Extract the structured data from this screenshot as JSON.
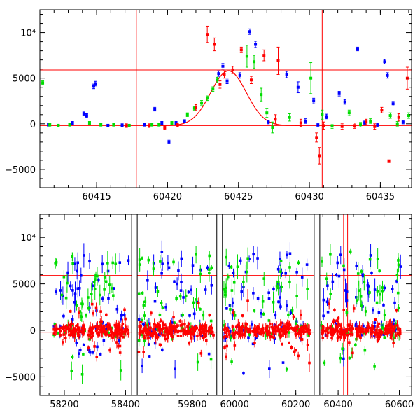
{
  "chart_data": [
    {
      "type": "scatter",
      "xlim": [
        60411,
        60437.2
      ],
      "ylim": [
        -7000,
        12500
      ],
      "x_ticks": [
        {
          "value": 60415,
          "label": "60415"
        },
        {
          "value": 60420,
          "label": "60420"
        },
        {
          "value": 60425,
          "label": "60425"
        },
        {
          "value": 60430,
          "label": "60430"
        },
        {
          "value": 60435,
          "label": "60435"
        }
      ],
      "y_ticks": [
        {
          "value": -5000,
          "label": "−5000"
        },
        {
          "value": 0,
          "label": "0"
        },
        {
          "value": 5000,
          "label": "5000"
        },
        {
          "value": 10000,
          "label": "10⁴"
        }
      ],
      "hlines": [
        5900,
        -200
      ],
      "vlines": [
        60417.8,
        60430.9
      ],
      "model_curve": {
        "peak_x": 60424.3,
        "peak_y": 5800,
        "baseline": -200,
        "width": 1.25,
        "color": "#ff0000"
      },
      "series": [
        {
          "color": "#0000ff",
          "points": [
            [
              60411.6,
              -100,
              150
            ],
            [
              60413.3,
              100,
              150
            ],
            [
              60414.1,
              1100,
              200
            ],
            [
              60414.3,
              900,
              200
            ],
            [
              60414.8,
              4100,
              250
            ],
            [
              60414.9,
              4400,
              250
            ],
            [
              60415.8,
              -200,
              150
            ],
            [
              60416.8,
              -150,
              150
            ],
            [
              60418.4,
              -100,
              150
            ],
            [
              60419.1,
              1600,
              200
            ],
            [
              60419.6,
              100,
              150
            ],
            [
              60420.1,
              -2000,
              200
            ],
            [
              60420.6,
              100,
              150
            ],
            [
              60421.2,
              300,
              150
            ],
            [
              60423.6,
              5500,
              300
            ],
            [
              60423.9,
              6300,
              300
            ],
            [
              60424.2,
              4700,
              300
            ],
            [
              60425.1,
              5300,
              300
            ],
            [
              60425.8,
              10100,
              300
            ],
            [
              60426.2,
              8700,
              350
            ],
            [
              60427.1,
              200,
              200
            ],
            [
              60428.4,
              5400,
              350
            ],
            [
              60429.2,
              4000,
              600
            ],
            [
              60429.7,
              300,
              250
            ],
            [
              60430.3,
              2500,
              300
            ],
            [
              60430.6,
              -100,
              200
            ],
            [
              60431.2,
              800,
              250
            ],
            [
              60432.1,
              3300,
              250
            ],
            [
              60432.5,
              2400,
              250
            ],
            [
              60433.4,
              8200,
              200
            ],
            [
              60433.9,
              100,
              200
            ],
            [
              60434.8,
              -100,
              200
            ],
            [
              60435.3,
              6800,
              250
            ],
            [
              60435.5,
              5300,
              300
            ],
            [
              60435.9,
              2200,
              250
            ],
            [
              60436.6,
              200,
              200
            ]
          ]
        },
        {
          "color": "#00dd00",
          "points": [
            [
              60411.2,
              4500,
              200
            ],
            [
              60411.7,
              -100,
              150
            ],
            [
              60412.3,
              -200,
              150
            ],
            [
              60413.1,
              -100,
              150
            ],
            [
              60414.5,
              100,
              150
            ],
            [
              60415.3,
              -100,
              150
            ],
            [
              60416.2,
              -100,
              150
            ],
            [
              60417.3,
              -200,
              150
            ],
            [
              60418.9,
              -100,
              150
            ],
            [
              60419.4,
              -100,
              150
            ],
            [
              60420.3,
              100,
              150
            ],
            [
              60421.4,
              1000,
              200
            ],
            [
              60421.9,
              1700,
              200
            ],
            [
              60422.4,
              2300,
              250
            ],
            [
              60422.8,
              2800,
              250
            ],
            [
              60423.2,
              3800,
              250
            ],
            [
              60423.5,
              4800,
              300
            ],
            [
              60425.6,
              7400,
              1200
            ],
            [
              60426.1,
              6800,
              700
            ],
            [
              60426.6,
              3200,
              700
            ],
            [
              60427.0,
              1200,
              500
            ],
            [
              60427.4,
              -400,
              600
            ],
            [
              60428.6,
              700,
              400
            ],
            [
              60430.1,
              5000,
              1700
            ],
            [
              60430.9,
              1000,
              500
            ],
            [
              60431.6,
              -200,
              300
            ],
            [
              60432.8,
              1200,
              300
            ],
            [
              60433.6,
              -100,
              250
            ],
            [
              60434.3,
              300,
              250
            ],
            [
              60435.7,
              900,
              300
            ],
            [
              60436.2,
              0,
              250
            ],
            [
              60437.0,
              900,
              300
            ]
          ]
        },
        {
          "color": "#ff0000",
          "points": [
            [
              60417.1,
              -200,
              200
            ],
            [
              60418.7,
              -200,
              200
            ],
            [
              60419.8,
              -400,
              200
            ],
            [
              60420.7,
              -100,
              200
            ],
            [
              60422.0,
              1800,
              300
            ],
            [
              60422.8,
              9800,
              900
            ],
            [
              60423.3,
              8700,
              700
            ],
            [
              60423.7,
              4300,
              400
            ],
            [
              60424.0,
              5400,
              400
            ],
            [
              60424.6,
              5900,
              400
            ],
            [
              60425.2,
              8100,
              300
            ],
            [
              60425.9,
              4800,
              400
            ],
            [
              60426.8,
              7500,
              600
            ],
            [
              60427.6,
              500,
              500
            ],
            [
              60427.8,
              6900,
              1500
            ],
            [
              60429.4,
              100,
              400
            ],
            [
              60430.5,
              -1500,
              500
            ],
            [
              60430.7,
              -3500,
              900
            ],
            [
              60431.0,
              -200,
              400
            ],
            [
              60432.3,
              -300,
              300
            ],
            [
              60433.2,
              -200,
              300
            ],
            [
              60434.0,
              200,
              300
            ],
            [
              60434.6,
              -300,
              300
            ],
            [
              60435.1,
              1500,
              300
            ],
            [
              60435.6,
              -4100,
              150
            ],
            [
              60436.3,
              700,
              400
            ],
            [
              60436.9,
              5000,
              1200
            ]
          ]
        }
      ]
    },
    {
      "type": "scatter",
      "xlim": [
        58120,
        60640
      ],
      "ylim": [
        -7000,
        12500
      ],
      "breaks": [
        [
          58420,
          59620
        ],
        [
          59880,
          59960
        ],
        [
          60260,
          60340
        ]
      ],
      "x_ticks": [
        {
          "value": 58200,
          "label": "58200"
        },
        {
          "value": 58400,
          "label": "58400"
        },
        {
          "value": 59800,
          "label": "59800"
        },
        {
          "value": 60000,
          "label": "60000"
        },
        {
          "value": 60200,
          "label": "60200"
        },
        {
          "value": 60400,
          "label": "60400"
        },
        {
          "value": 60600,
          "label": "60600"
        }
      ],
      "y_ticks": [
        {
          "value": -5000,
          "label": "−5000"
        },
        {
          "value": 0,
          "label": "0"
        },
        {
          "value": 5000,
          "label": "5000"
        },
        {
          "value": 10000,
          "label": "10⁴"
        }
      ],
      "hlines": [
        5900,
        -200
      ],
      "vlines": [
        60417.8,
        60430.9
      ],
      "seasons": [
        [
          58165,
          58410
        ],
        [
          59625,
          59870
        ],
        [
          59965,
          60245
        ],
        [
          60345,
          60605
        ]
      ],
      "series_colors": [
        "#0000ff",
        "#00dd00",
        "#ff0000"
      ]
    }
  ]
}
